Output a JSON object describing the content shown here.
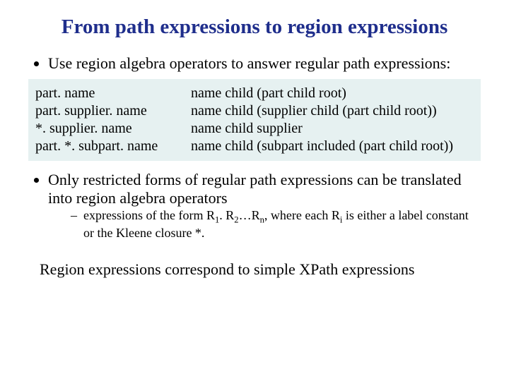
{
  "title": "From path expressions to region expressions",
  "bullet1": "Use region algebra operators to answer regular path expressions:",
  "table": {
    "rows": [
      {
        "left": "part. name",
        "right": "name child (part child root)"
      },
      {
        "left": "part. supplier. name",
        "right": "name child (supplier child (part child root))"
      },
      {
        "left": "*. supplier. name",
        "right": "name child supplier"
      },
      {
        "left": "part. *. subpart. name",
        "right": "name child (subpart included (part child root))"
      }
    ]
  },
  "bullet2": "Only restricted forms of regular path expressions can be translated into region algebra operators",
  "sub_prefix": "expressions of the form R",
  "sub_mid1": ". R",
  "sub_mid2": "…R",
  "sub_tail": ", where each R",
  "sub_tail2": " is either a label constant or the Kleene closure *.",
  "closing": "Region expressions correspond to simple XPath expressions",
  "colors": {
    "title": "#1f2e8c",
    "box_bg": "#e6f1f1",
    "text": "#000000",
    "background": "#ffffff"
  }
}
